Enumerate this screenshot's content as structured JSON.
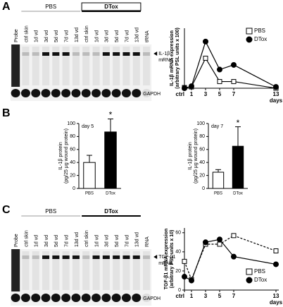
{
  "panel_labels": [
    "A",
    "B",
    "C"
  ],
  "gel_a": {
    "groups": [
      "PBS",
      "DTox"
    ],
    "lanes": [
      "Probe",
      "ctrl skin",
      "1d vd",
      "3d vd",
      "5d vd",
      "7d vd",
      "13d vd",
      "ctrl skin",
      "1d vd",
      "3d vd",
      "5d vd",
      "7d vd",
      "13d vd",
      "tRNA"
    ],
    "target_label": [
      "IL-1β",
      "mRNA"
    ],
    "control_label": "GAPDH"
  },
  "gel_c": {
    "groups": [
      "PBS",
      "DTox"
    ],
    "lanes": [
      "Probe",
      "ctrl skin",
      "1d vd",
      "3d vd",
      "5d vd",
      "7d vd",
      "13d vd",
      "ctrl skin",
      "1d vd",
      "3d vd",
      "5d vd",
      "7d vd",
      "13d vd",
      "RNA"
    ],
    "target_label": [
      "TGF-β1",
      "mRNA"
    ],
    "control_label": "GAPDH"
  },
  "chart_data": [
    {
      "type": "line",
      "y_label": [
        "IL-1β mRNA expression",
        "(arbitrary PSL units x 100)"
      ],
      "x_label": "days",
      "x": [
        0,
        1,
        3,
        5,
        7,
        13
      ],
      "xlim": [
        0,
        13
      ],
      "xticks": [
        {
          "value": 0,
          "label": "ctrl"
        },
        1,
        3,
        5,
        7,
        13
      ],
      "ylim": [
        0,
        90
      ],
      "legend": "top-right",
      "series": [
        {
          "name": "PBS",
          "color": "#ffffff",
          "marker": "square",
          "dashed": false,
          "values": [
            1,
            2,
            45,
            10,
            10,
            0
          ]
        },
        {
          "name": "DTox",
          "color": "#000000",
          "marker": "circle",
          "dashed": false,
          "values": [
            0,
            3,
            70,
            28,
            35,
            2
          ]
        }
      ]
    },
    {
      "type": "bar",
      "title": "day 5",
      "y_label": [
        "IL-1β protein",
        "(pg/25 μg wound protein)"
      ],
      "categories": [
        "PBS",
        "DTox"
      ],
      "values": [
        40,
        87
      ],
      "errors": [
        11,
        20
      ],
      "colors": [
        "#ffffff",
        "#000000"
      ],
      "significance": "*",
      "ylim": [
        0,
        100
      ],
      "yticks": [
        0,
        20,
        40,
        60,
        80,
        100
      ]
    },
    {
      "type": "bar",
      "title": "day 7",
      "y_label": [
        "IL-1β protein",
        "(pg/25 μg wound protein)"
      ],
      "categories": [
        "PBS",
        "DTox"
      ],
      "values": [
        25,
        65
      ],
      "errors": [
        4,
        30
      ],
      "colors": [
        "#ffffff",
        "#000000"
      ],
      "significance": "*",
      "ylim": [
        0,
        100
      ],
      "yticks": [
        0,
        20,
        40,
        60,
        80,
        100
      ]
    },
    {
      "type": "line",
      "y_label": [
        "TGF-β1 mRNA expression",
        "(arbitrary PSL units x 10)"
      ],
      "x_label": "days",
      "x": [
        0,
        1,
        3,
        5,
        7,
        13
      ],
      "xlim": [
        0,
        13
      ],
      "xticks": [
        {
          "value": 0,
          "label": "ctrl"
        },
        1,
        3,
        5,
        7,
        13
      ],
      "ylim": [
        0,
        65
      ],
      "yticks": [
        0,
        20,
        40,
        60
      ],
      "legend": "bottom-right",
      "series": [
        {
          "name": "PBS",
          "color": "#ffffff",
          "marker": "square",
          "dashed": true,
          "values": [
            30,
            11,
            48,
            48,
            57,
            41
          ]
        },
        {
          "name": "DTox",
          "color": "#000000",
          "marker": "circle",
          "dashed": false,
          "values": [
            14,
            10,
            50,
            53,
            35,
            27
          ]
        }
      ]
    }
  ]
}
